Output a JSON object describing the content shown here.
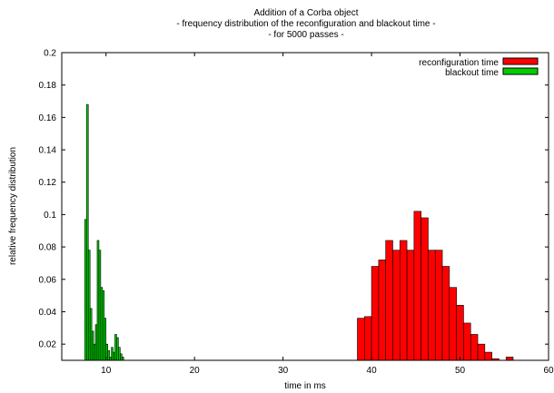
{
  "chart_data": {
    "type": "bar",
    "title": "Addition of a Corba object",
    "subtitle_lines": [
      "- frequency distribution of the reconfiguration and blackout time -",
      "- for 5000 passes -"
    ],
    "xlabel": "time in ms",
    "ylabel": "relative frequency distribution",
    "xlim": [
      5,
      60
    ],
    "ylim": [
      0.01,
      0.2
    ],
    "xticks": [
      "10",
      "20",
      "30",
      "40",
      "50",
      "60"
    ],
    "yticks": [
      "0.02",
      "0.04",
      "0.06",
      "0.08",
      "0.1",
      "0.12",
      "0.14",
      "0.16",
      "0.18",
      "0.2"
    ],
    "legend_position": "top-right",
    "series": [
      {
        "name": "reconfiguration time",
        "color": "#ff0000",
        "bin_width": 0.8,
        "x": [
          38.4,
          39.2,
          40.0,
          40.8,
          41.6,
          42.4,
          43.2,
          44.0,
          44.8,
          45.6,
          46.4,
          47.2,
          48.0,
          48.8,
          49.6,
          50.4,
          51.2,
          52.0,
          52.8,
          53.6,
          54.4,
          55.2
        ],
        "values": [
          0.036,
          0.037,
          0.068,
          0.072,
          0.084,
          0.078,
          0.084,
          0.078,
          0.102,
          0.098,
          0.078,
          0.078,
          0.068,
          0.055,
          0.044,
          0.033,
          0.026,
          0.02,
          0.015,
          0.011,
          0.008,
          0.012
        ]
      },
      {
        "name": "blackout time",
        "color": "#00cc00",
        "bin_width": 0.2,
        "x": [
          7.6,
          7.8,
          8.0,
          8.2,
          8.4,
          8.6,
          8.8,
          9.0,
          9.2,
          9.4,
          9.6,
          9.8,
          10.0,
          10.2,
          10.4,
          10.6,
          10.8,
          11.0,
          11.2,
          11.4,
          11.6,
          11.8
        ],
        "values": [
          0.097,
          0.168,
          0.078,
          0.042,
          0.028,
          0.02,
          0.032,
          0.084,
          0.078,
          0.055,
          0.053,
          0.036,
          0.02,
          0.016,
          0.012,
          0.018,
          0.015,
          0.026,
          0.024,
          0.018,
          0.014,
          0.012
        ]
      }
    ]
  }
}
